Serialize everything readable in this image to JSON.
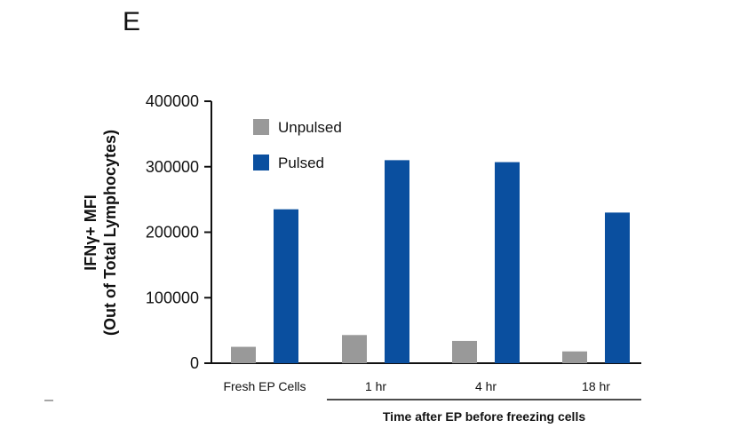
{
  "panel_letter": "E",
  "chart_data": {
    "type": "bar",
    "categories": [
      "Fresh EP Cells",
      "1 hr",
      "4 hr",
      "18 hr"
    ],
    "series": [
      {
        "name": "Unpulsed",
        "color": "#999999",
        "values": [
          25000,
          43000,
          34000,
          18000
        ]
      },
      {
        "name": "Pulsed",
        "color": "#0a4f9f",
        "values": [
          235000,
          310000,
          307000,
          230000
        ]
      }
    ],
    "ylabel_line1": "IFNγ+ MFI",
    "ylabel_line2": "(Out of Total Lymphocytes)",
    "xlabel_group": "Time after EP before freezing cells",
    "ylim": [
      0,
      400000
    ],
    "yticks": [
      "400000",
      "300000",
      "200000",
      "100000",
      "0"
    ],
    "legend_position": "top-left"
  }
}
